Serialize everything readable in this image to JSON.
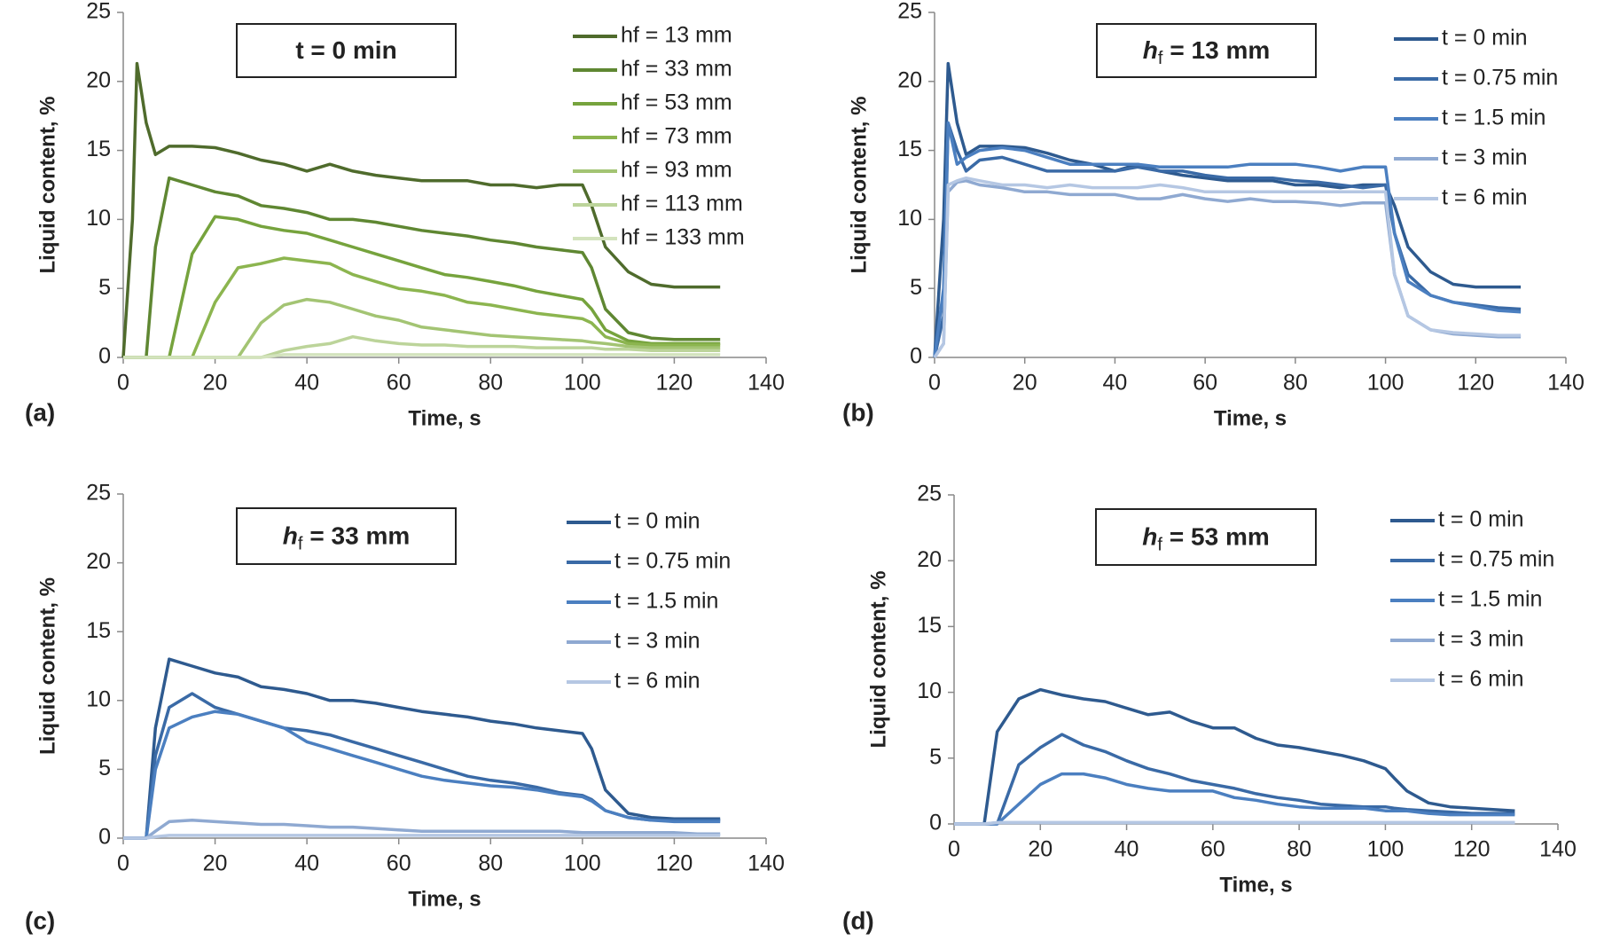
{
  "chart_data": [
    {
      "type": "line",
      "title": "t = 0 min",
      "panel_label": "(a)",
      "x_label": "Time, s",
      "y_label": "Liquid content, %",
      "xlim": [
        0,
        140
      ],
      "xticks": [
        0,
        20,
        40,
        60,
        80,
        100,
        120,
        140
      ],
      "ylim": [
        0,
        25
      ],
      "yticks": [
        0,
        5,
        10,
        15,
        20,
        25
      ],
      "x": [
        0,
        2,
        3,
        5,
        7,
        10,
        15,
        20,
        25,
        30,
        35,
        40,
        45,
        50,
        55,
        60,
        65,
        70,
        75,
        80,
        85,
        90,
        95,
        100,
        102,
        105,
        110,
        115,
        120,
        125,
        130
      ],
      "series": [
        {
          "name": "hf = 13 mm",
          "color": "#4f6b2c",
          "values": [
            0,
            10,
            21.3,
            17,
            14.7,
            15.3,
            15.3,
            15.2,
            14.8,
            14.3,
            14,
            13.5,
            14,
            13.5,
            13.2,
            13,
            12.8,
            12.8,
            12.8,
            12.5,
            12.5,
            12.3,
            12.5,
            12.5,
            11,
            8,
            6.2,
            5.3,
            5.1,
            5.1,
            5.1
          ]
        },
        {
          "name": "hf = 33 mm",
          "color": "#5f8732",
          "values": [
            0,
            0,
            0,
            0,
            8,
            13,
            12.5,
            12,
            11.7,
            11,
            10.8,
            10.5,
            10,
            10,
            9.8,
            9.5,
            9.2,
            9,
            8.8,
            8.5,
            8.3,
            8,
            7.8,
            7.6,
            6.5,
            3.5,
            1.8,
            1.4,
            1.3,
            1.3,
            1.3
          ]
        },
        {
          "name": "hf = 53 mm",
          "color": "#76a33d",
          "values": [
            0,
            0,
            0,
            0,
            0,
            0,
            7.5,
            10.2,
            10,
            9.5,
            9.2,
            9,
            8.5,
            8,
            7.5,
            7,
            6.5,
            6,
            5.8,
            5.5,
            5.2,
            4.8,
            4.5,
            4.2,
            3.5,
            2,
            1.2,
            1,
            1,
            1,
            1
          ]
        },
        {
          "name": "hf = 73 mm",
          "color": "#8cb54f",
          "values": [
            0,
            0,
            0,
            0,
            0,
            0,
            0,
            4,
            6.5,
            6.8,
            7.2,
            7,
            6.8,
            6,
            5.5,
            5,
            4.8,
            4.5,
            4,
            3.8,
            3.5,
            3.2,
            3,
            2.8,
            2.5,
            1.5,
            1,
            0.9,
            0.9,
            0.9,
            0.9
          ]
        },
        {
          "name": "hf = 93 mm",
          "color": "#a3c473",
          "values": [
            0,
            0,
            0,
            0,
            0,
            0,
            0,
            0,
            0,
            2.5,
            3.8,
            4.2,
            4,
            3.5,
            3,
            2.7,
            2.2,
            2,
            1.8,
            1.6,
            1.5,
            1.4,
            1.3,
            1.2,
            1.1,
            1,
            0.8,
            0.7,
            0.7,
            0.7,
            0.7
          ]
        },
        {
          "name": "hf = 113 mm",
          "color": "#bcd49a",
          "values": [
            0,
            0,
            0,
            0,
            0,
            0,
            0,
            0,
            0,
            0,
            0.5,
            0.8,
            1,
            1.5,
            1.2,
            1,
            0.9,
            0.9,
            0.8,
            0.8,
            0.8,
            0.7,
            0.7,
            0.7,
            0.7,
            0.6,
            0.6,
            0.5,
            0.5,
            0.5,
            0.5
          ]
        },
        {
          "name": "hf = 133 mm",
          "color": "#d3e3bd",
          "values": [
            0,
            0,
            0,
            0,
            0,
            0,
            0,
            0,
            0,
            0,
            0.2,
            0.2,
            0.2,
            0.2,
            0.2,
            0.2,
            0.2,
            0.2,
            0.2,
            0.2,
            0.2,
            0.2,
            0.2,
            0.2,
            0.2,
            0.2,
            0.2,
            0.2,
            0.2,
            0.2,
            0.2
          ]
        }
      ]
    },
    {
      "type": "line",
      "title_symbol": "h",
      "title_subscript": "f",
      "title": "= 13 mm",
      "panel_label": "(b)",
      "x_label": "Time, s",
      "y_label": "Liquid content, %",
      "xlim": [
        0,
        140
      ],
      "xticks": [
        0,
        20,
        40,
        60,
        80,
        100,
        120,
        140
      ],
      "ylim": [
        0,
        25
      ],
      "yticks": [
        0,
        5,
        10,
        15,
        20,
        25
      ],
      "x": [
        0,
        2,
        3,
        5,
        7,
        10,
        15,
        20,
        25,
        30,
        35,
        40,
        45,
        50,
        55,
        60,
        65,
        70,
        75,
        80,
        85,
        90,
        95,
        100,
        102,
        105,
        110,
        115,
        120,
        125,
        130
      ],
      "series": [
        {
          "name": "t = 0 min",
          "color": "#2e5a8f",
          "values": [
            0,
            10,
            21.3,
            17,
            14.7,
            15.3,
            15.3,
            15.2,
            14.8,
            14.3,
            14,
            13.5,
            14,
            13.5,
            13.2,
            13,
            12.8,
            12.8,
            12.8,
            12.5,
            12.5,
            12.3,
            12.5,
            12.5,
            11,
            8,
            6.2,
            5.3,
            5.1,
            5.1,
            5.1
          ]
        },
        {
          "name": "t = 0.75 min",
          "color": "#3a6aa6",
          "values": [
            0,
            3,
            17,
            15,
            13.5,
            14.3,
            14.5,
            14,
            13.5,
            13.5,
            13.5,
            13.5,
            13.8,
            13.5,
            13.5,
            13.2,
            13,
            13,
            13,
            12.8,
            12.7,
            12.5,
            12.3,
            12.5,
            9,
            6,
            4.5,
            4,
            3.8,
            3.6,
            3.5
          ]
        },
        {
          "name": "t = 1.5 min",
          "color": "#4b7fc0",
          "values": [
            0,
            5,
            17,
            14,
            14.5,
            15,
            15.2,
            15,
            14.5,
            14,
            14,
            14,
            14,
            13.8,
            13.8,
            13.8,
            13.8,
            14,
            14,
            14,
            13.8,
            13.5,
            13.8,
            13.8,
            9,
            5.5,
            4.5,
            4,
            3.7,
            3.4,
            3.3
          ]
        },
        {
          "name": "t = 3 min",
          "color": "#8fa9d1",
          "values": [
            0,
            1,
            12,
            12.7,
            12.8,
            12.5,
            12.3,
            12,
            12,
            11.8,
            11.8,
            11.8,
            11.5,
            11.5,
            11.8,
            11.5,
            11.3,
            11.5,
            11.3,
            11.3,
            11.2,
            11,
            11.2,
            11.2,
            6,
            3,
            2,
            1.7,
            1.6,
            1.5,
            1.5
          ]
        },
        {
          "name": "t = 6 min",
          "color": "#b5c7e3",
          "values": [
            0,
            1,
            12.5,
            12.8,
            13,
            12.8,
            12.5,
            12.5,
            12.3,
            12.5,
            12.3,
            12.3,
            12.3,
            12.5,
            12.3,
            12,
            12,
            12,
            12,
            12,
            12,
            12,
            12,
            12,
            6,
            3,
            2,
            1.8,
            1.7,
            1.6,
            1.6
          ]
        }
      ]
    },
    {
      "type": "line",
      "title_symbol": "h",
      "title_subscript": "f",
      "title": "= 33 mm",
      "panel_label": "(c)",
      "x_label": "Time, s",
      "y_label": "Liquid content, %",
      "xlim": [
        0,
        140
      ],
      "xticks": [
        0,
        20,
        40,
        60,
        80,
        100,
        120,
        140
      ],
      "ylim": [
        0,
        25
      ],
      "yticks": [
        0,
        5,
        10,
        15,
        20,
        25
      ],
      "x": [
        0,
        2,
        3,
        5,
        7,
        10,
        15,
        20,
        25,
        30,
        35,
        40,
        45,
        50,
        55,
        60,
        65,
        70,
        75,
        80,
        85,
        90,
        95,
        100,
        102,
        105,
        110,
        115,
        120,
        125,
        130
      ],
      "series": [
        {
          "name": "t = 0 min",
          "color": "#2e5a8f",
          "values": [
            0,
            0,
            0,
            0,
            8,
            13,
            12.5,
            12,
            11.7,
            11,
            10.8,
            10.5,
            10,
            10,
            9.8,
            9.5,
            9.2,
            9,
            8.8,
            8.5,
            8.3,
            8,
            7.8,
            7.6,
            6.5,
            3.5,
            1.8,
            1.5,
            1.4,
            1.4,
            1.4
          ]
        },
        {
          "name": "t = 0.75 min",
          "color": "#3a6aa6",
          "values": [
            0,
            0,
            0,
            0,
            6,
            9.5,
            10.5,
            9.5,
            9,
            8.5,
            8,
            7.8,
            7.5,
            7,
            6.5,
            6,
            5.5,
            5,
            4.5,
            4.2,
            4,
            3.7,
            3.3,
            3.1,
            2.8,
            2,
            1.5,
            1.3,
            1.3,
            1.3,
            1.3
          ]
        },
        {
          "name": "t = 1.5 min",
          "color": "#4b7fc0",
          "values": [
            0,
            0,
            0,
            0,
            5,
            8,
            8.8,
            9.2,
            9,
            8.5,
            8,
            7,
            6.5,
            6,
            5.5,
            5,
            4.5,
            4.2,
            4,
            3.8,
            3.7,
            3.5,
            3.2,
            3,
            2.7,
            2,
            1.5,
            1.3,
            1.2,
            1.2,
            1.2
          ]
        },
        {
          "name": "t = 3 min",
          "color": "#8fa9d1",
          "values": [
            0,
            0,
            0,
            0,
            0.5,
            1.2,
            1.3,
            1.2,
            1.1,
            1,
            1,
            0.9,
            0.8,
            0.8,
            0.7,
            0.6,
            0.5,
            0.5,
            0.5,
            0.5,
            0.5,
            0.5,
            0.5,
            0.4,
            0.4,
            0.4,
            0.4,
            0.4,
            0.4,
            0.3,
            0.3
          ]
        },
        {
          "name": "t = 6 min",
          "color": "#b5c7e3",
          "values": [
            0,
            0,
            0,
            0,
            0.1,
            0.2,
            0.2,
            0.2,
            0.2,
            0.2,
            0.2,
            0.2,
            0.2,
            0.2,
            0.2,
            0.2,
            0.2,
            0.2,
            0.2,
            0.2,
            0.2,
            0.2,
            0.2,
            0.2,
            0.2,
            0.2,
            0.2,
            0.2,
            0.2,
            0.2,
            0.2
          ]
        }
      ]
    },
    {
      "type": "line",
      "title_symbol": "h",
      "title_subscript": "f",
      "title": "= 53 mm",
      "panel_label": "(d)",
      "x_label": "Time, s",
      "y_label": "Liquid content, %",
      "xlim": [
        0,
        140
      ],
      "xticks": [
        0,
        20,
        40,
        60,
        80,
        100,
        120,
        140
      ],
      "ylim": [
        0,
        25
      ],
      "yticks": [
        0,
        5,
        10,
        15,
        20,
        25
      ],
      "x": [
        0,
        2,
        3,
        5,
        7,
        10,
        15,
        20,
        25,
        30,
        35,
        40,
        45,
        50,
        55,
        60,
        65,
        70,
        75,
        80,
        85,
        90,
        95,
        100,
        102,
        105,
        110,
        115,
        120,
        125,
        130
      ],
      "series": [
        {
          "name": "t = 0 min",
          "color": "#2e5a8f",
          "values": [
            0,
            0,
            0,
            0,
            0,
            7,
            9.5,
            10.2,
            9.8,
            9.5,
            9.3,
            8.8,
            8.3,
            8.5,
            7.8,
            7.3,
            7.3,
            6.5,
            6,
            5.8,
            5.5,
            5.2,
            4.8,
            4.2,
            3.5,
            2.5,
            1.6,
            1.3,
            1.2,
            1.1,
            1
          ]
        },
        {
          "name": "t = 0.75 min",
          "color": "#3a6aa6",
          "values": [
            0,
            0,
            0,
            0,
            0,
            0,
            4.5,
            5.8,
            6.8,
            6,
            5.5,
            4.8,
            4.2,
            3.8,
            3.3,
            3,
            2.7,
            2.3,
            2,
            1.8,
            1.5,
            1.4,
            1.3,
            1.3,
            1.2,
            1.1,
            1,
            0.9,
            0.8,
            0.8,
            0.8
          ]
        },
        {
          "name": "t = 1.5 min",
          "color": "#4b7fc0",
          "values": [
            0,
            0,
            0,
            0,
            0,
            0,
            1.5,
            3,
            3.8,
            3.8,
            3.5,
            3,
            2.7,
            2.5,
            2.5,
            2.5,
            2,
            1.8,
            1.5,
            1.3,
            1.2,
            1.2,
            1.2,
            1,
            1,
            1,
            0.8,
            0.7,
            0.7,
            0.7,
            0.7
          ]
        },
        {
          "name": "t = 3 min",
          "color": "#8fa9d1",
          "values": [
            0,
            0,
            0,
            0,
            0,
            0.1,
            0.1,
            0.1,
            0.1,
            0.1,
            0.1,
            0.1,
            0.1,
            0.1,
            0.1,
            0.1,
            0.1,
            0.1,
            0.1,
            0.1,
            0.1,
            0.1,
            0.1,
            0.1,
            0.1,
            0.1,
            0.1,
            0.1,
            0.1,
            0.1,
            0.1
          ]
        },
        {
          "name": "t = 6 min",
          "color": "#b5c7e3",
          "values": [
            0,
            0,
            0,
            0,
            0,
            0.1,
            0.1,
            0.1,
            0.1,
            0.1,
            0.1,
            0.1,
            0.1,
            0.1,
            0.1,
            0.1,
            0.1,
            0.1,
            0.1,
            0.1,
            0.1,
            0.1,
            0.1,
            0.1,
            0.1,
            0.1,
            0.1,
            0.1,
            0.1,
            0.1,
            0.1
          ]
        }
      ]
    }
  ]
}
